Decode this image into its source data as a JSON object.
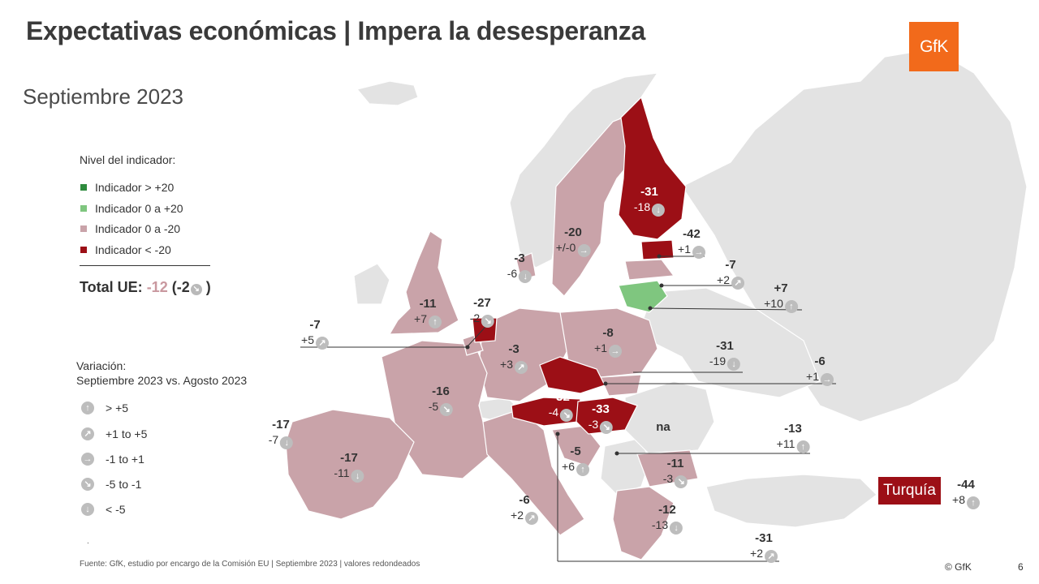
{
  "title": "Expectativas económicas | Impera la desesperanza",
  "subtitle": "Septiembre 2023",
  "logo_text": "GfK",
  "legend": {
    "title": "Nivel del indicador:",
    "items": [
      {
        "label": "Indicador > +20",
        "color": "#2e8b3d"
      },
      {
        "label": "Indicador 0 a +20",
        "color": "#7fc67f"
      },
      {
        "label": "Indicador 0 a -20",
        "color": "#c9a3a9"
      },
      {
        "label": "Indicador < -20",
        "color": "#9c0f16"
      }
    ]
  },
  "total": {
    "label": "Total UE:",
    "value": "-12",
    "change_open": "(-2",
    "change_close": ")",
    "arrow": "↘"
  },
  "variation_legend": {
    "title_line1": "Variación:",
    "title_line2": "Septiembre 2023 vs. Agosto 2023",
    "items": [
      {
        "icon": "arrow-up-icon",
        "glyph": "↑",
        "label": "> +5"
      },
      {
        "icon": "arrow-up-right-icon",
        "glyph": "↗",
        "label": "+1 to +5"
      },
      {
        "icon": "arrow-right-icon",
        "glyph": "→",
        "label": "-1 to +1"
      },
      {
        "icon": "arrow-down-right-icon",
        "glyph": "↘",
        "label": "-5 to -1"
      },
      {
        "icon": "arrow-down-icon",
        "glyph": "↓",
        "label": "< -5"
      }
    ]
  },
  "chart_data": {
    "type": "map",
    "title": "Expectativas económicas | Impera la desesperanza",
    "subtitle": "Septiembre 2023",
    "points": [
      {
        "key": "fi",
        "value": "-31",
        "change": "-18",
        "trend": "↓",
        "level": "< -20"
      },
      {
        "key": "ee",
        "value": "-42",
        "change": "+1",
        "trend": "→",
        "level": "< -20"
      },
      {
        "key": "se",
        "value": "-20",
        "change": "+/-0",
        "trend": "→",
        "level": "0 a -20"
      },
      {
        "key": "dk",
        "value": "-3",
        "change": "-6",
        "trend": "↓",
        "level": "0 a -20"
      },
      {
        "key": "lv",
        "value": "-7",
        "change": "+2",
        "trend": "↗",
        "level": "0 a -20"
      },
      {
        "key": "lt",
        "value": "+7",
        "change": "+10",
        "trend": "↑",
        "level": "0 a +20"
      },
      {
        "key": "ie",
        "value": "-11",
        "change": "+7",
        "trend": "↑",
        "level": "0 a -20"
      },
      {
        "key": "nl",
        "value": "-27",
        "change": "-2",
        "trend": "↘",
        "level": "< -20"
      },
      {
        "key": "be",
        "value": "-7",
        "change": "+5",
        "trend": "↗",
        "level": "0 a -20"
      },
      {
        "key": "de",
        "value": "-3",
        "change": "+3",
        "trend": "↗",
        "level": "0 a -20"
      },
      {
        "key": "pl",
        "value": "-8",
        "change": "+1",
        "trend": "→",
        "level": "0 a -20"
      },
      {
        "key": "cz",
        "value": "-31",
        "change": "-19",
        "trend": "↓",
        "level": "< -20"
      },
      {
        "key": "sk",
        "value": "-6",
        "change": "+1",
        "trend": "→",
        "level": "0 a -20"
      },
      {
        "key": "fr",
        "value": "-16",
        "change": "-5",
        "trend": "↘",
        "level": "0 a -20"
      },
      {
        "key": "at",
        "value": "-32",
        "change": "-4",
        "trend": "↘",
        "level": "< -20"
      },
      {
        "key": "hu",
        "value": "-33",
        "change": "-3",
        "trend": "↘",
        "level": "< -20"
      },
      {
        "key": "ro",
        "value": "na",
        "change": "",
        "trend": "",
        "level": ""
      },
      {
        "key": "pt",
        "value": "-17",
        "change": "-7",
        "trend": "↓",
        "level": "0 a -20"
      },
      {
        "key": "es",
        "value": "-17",
        "change": "-11",
        "trend": "↓",
        "level": "0 a -20"
      },
      {
        "key": "hr",
        "value": "-5",
        "change": "+6",
        "trend": "↑",
        "level": "0 a -20"
      },
      {
        "key": "bg",
        "value": "-11",
        "change": "-3",
        "trend": "↘",
        "level": "0 a -20"
      },
      {
        "key": "si",
        "value": "-13",
        "change": "+11",
        "trend": "↑",
        "level": "0 a -20"
      },
      {
        "key": "it",
        "value": "-6",
        "change": "+2",
        "trend": "↗",
        "level": "0 a -20"
      },
      {
        "key": "gr",
        "value": "-12",
        "change": "-13",
        "trend": "↓",
        "level": "0 a -20"
      },
      {
        "key": "cy",
        "value": "-31",
        "change": "+2",
        "trend": "↗",
        "level": "< -20"
      },
      {
        "key": "tr",
        "name": "Turquía",
        "value": "-44",
        "change": "+8",
        "trend": "↑",
        "level": "< -20"
      }
    ]
  },
  "footer": {
    "source": "Fuente: GfK, estudio por encargo de la Comisión EU | Septiembre 2023 | valores redondeados",
    "dot": ".",
    "copyright": "© GfK",
    "page": "6"
  }
}
